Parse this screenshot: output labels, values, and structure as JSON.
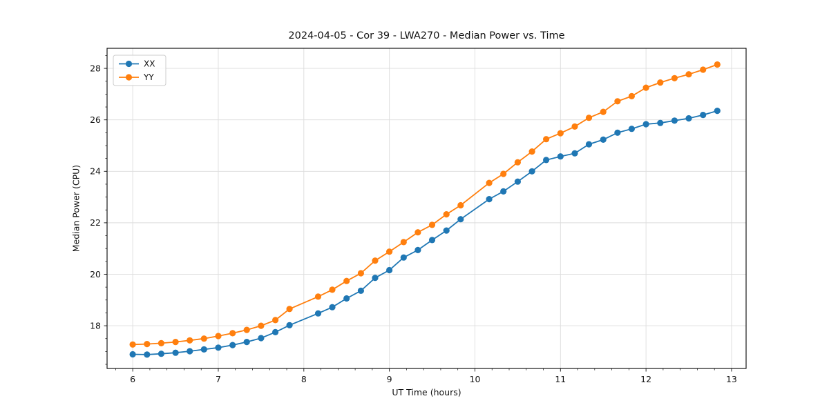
{
  "figure": {
    "title": "2024-04-05 - Cor 39 - LWA270 - Median Power vs. Time"
  },
  "chart_data": {
    "type": "line",
    "title": "2024-04-05 - Cor 39 - LWA270 - Median Power vs. Time",
    "xlabel": "UT Time (hours)",
    "ylabel": "Median Power (CPU)",
    "xlim": [
      5.7,
      13.17
    ],
    "ylim": [
      16.34,
      28.78
    ],
    "xticks": [
      6,
      7,
      8,
      9,
      10,
      11,
      12,
      13
    ],
    "yticks": [
      18,
      20,
      22,
      24,
      26,
      28
    ],
    "x_minor_step": 0.2,
    "y_minor_step": 0.5,
    "grid": true,
    "grid_color": "#dcdcdc",
    "legend_position": "upper-left",
    "marker": "circle",
    "series": [
      {
        "name": "XX",
        "color": "#1f77b4",
        "x": [
          6.0,
          6.167,
          6.333,
          6.5,
          6.667,
          6.833,
          7.0,
          7.167,
          7.333,
          7.5,
          7.667,
          7.833,
          8.167,
          8.333,
          8.5,
          8.667,
          8.833,
          9.0,
          9.167,
          9.333,
          9.5,
          9.667,
          9.833,
          10.167,
          10.333,
          10.5,
          10.667,
          10.833,
          11.0,
          11.167,
          11.333,
          11.5,
          11.667,
          11.833,
          12.0,
          12.167,
          12.333,
          12.5,
          12.667,
          12.833
        ],
        "y": [
          16.89,
          16.88,
          16.91,
          16.95,
          17.01,
          17.08,
          17.15,
          17.25,
          17.37,
          17.52,
          17.75,
          18.02,
          18.48,
          18.72,
          19.06,
          19.36,
          19.86,
          20.16,
          20.65,
          20.94,
          21.33,
          21.7,
          22.14,
          22.92,
          23.22,
          23.6,
          24.0,
          24.44,
          24.58,
          24.7,
          25.05,
          25.23,
          25.5,
          25.65,
          25.83,
          25.88,
          25.97,
          26.06,
          26.19,
          26.35
        ]
      },
      {
        "name": "YY",
        "color": "#ff7f0e",
        "x": [
          6.0,
          6.167,
          6.333,
          6.5,
          6.667,
          6.833,
          7.0,
          7.167,
          7.333,
          7.5,
          7.667,
          7.833,
          8.167,
          8.333,
          8.5,
          8.667,
          8.833,
          9.0,
          9.167,
          9.333,
          9.5,
          9.667,
          9.833,
          10.167,
          10.333,
          10.5,
          10.667,
          10.833,
          11.0,
          11.167,
          11.333,
          11.5,
          11.667,
          11.833,
          12.0,
          12.167,
          12.333,
          12.5,
          12.667,
          12.833
        ],
        "y": [
          17.27,
          17.29,
          17.32,
          17.37,
          17.43,
          17.5,
          17.6,
          17.71,
          17.84,
          18.0,
          18.22,
          18.65,
          19.13,
          19.4,
          19.74,
          20.04,
          20.53,
          20.88,
          21.25,
          21.63,
          21.92,
          22.33,
          22.68,
          23.55,
          23.9,
          24.35,
          24.77,
          25.25,
          25.48,
          25.74,
          26.08,
          26.31,
          26.72,
          26.92,
          27.25,
          27.45,
          27.62,
          27.77,
          27.95,
          28.15
        ]
      }
    ]
  }
}
